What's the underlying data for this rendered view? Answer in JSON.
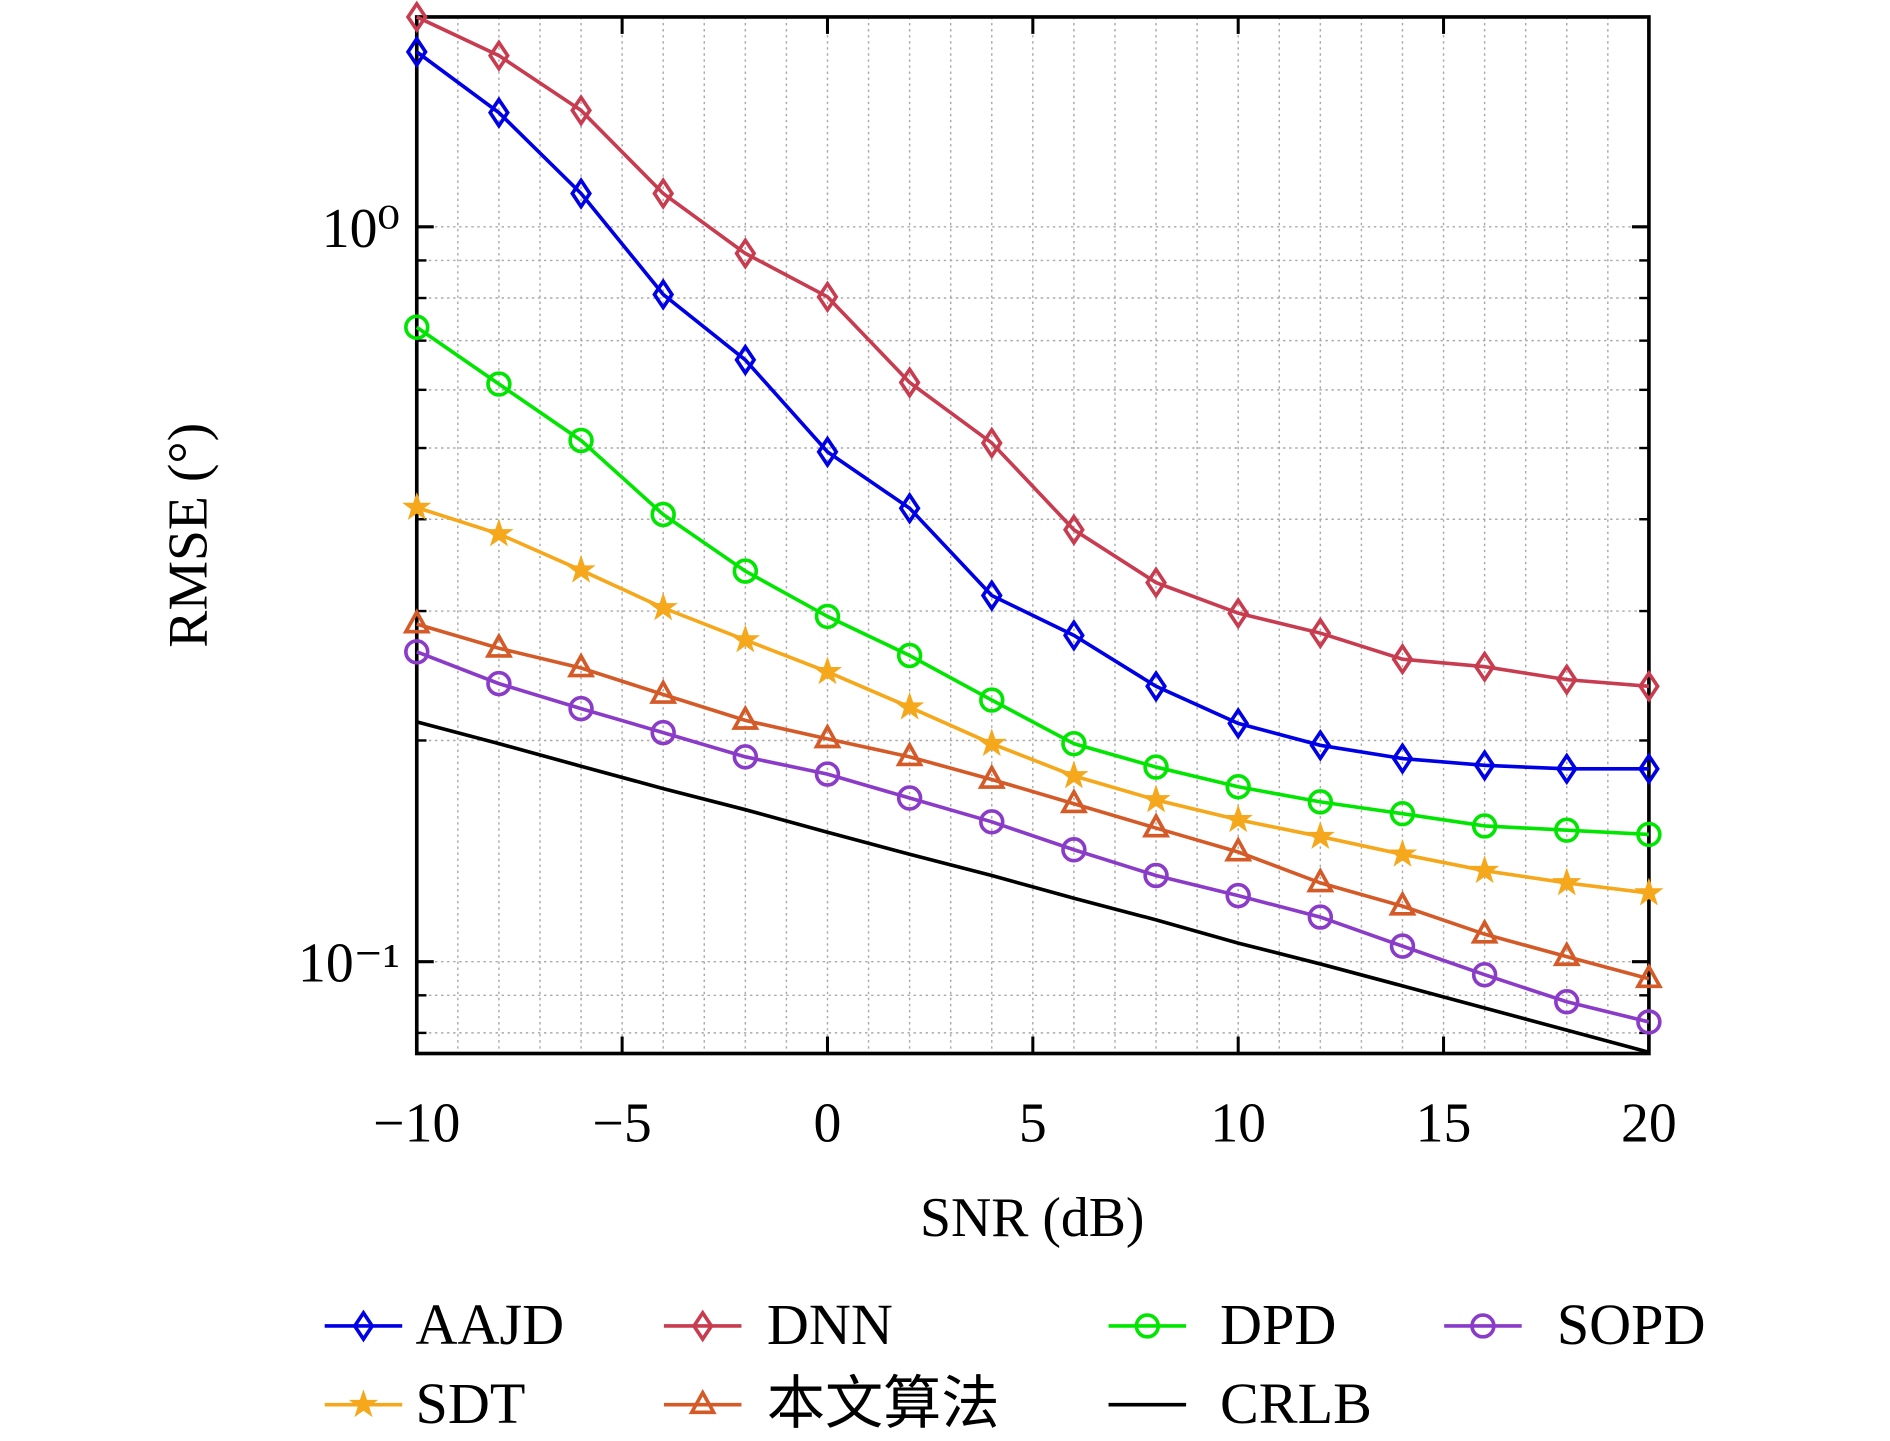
{
  "chart_data": {
    "type": "line",
    "xlabel": "SNR (dB)",
    "ylabel": "RMSE (°)",
    "x": [
      -10,
      -8,
      -6,
      -4,
      -2,
      0,
      2,
      4,
      6,
      8,
      10,
      12,
      14,
      16,
      18,
      20
    ],
    "xlim": [
      -10,
      20
    ],
    "xticks": [
      {
        "value": -10,
        "label": "−10"
      },
      {
        "value": -5,
        "label": "−5"
      },
      0,
      5,
      10,
      15,
      20
    ],
    "xminorticks": [
      -9,
      -8,
      -7,
      -6,
      -4,
      -3,
      -2,
      -1,
      1,
      2,
      3,
      4,
      6,
      7,
      8,
      9,
      11,
      12,
      13,
      14,
      16,
      17,
      18,
      19
    ],
    "ylim": [
      0.075,
      1.93
    ],
    "yscale": "log",
    "yticks": [
      {
        "value": 0.1,
        "label": "10⁻¹"
      },
      {
        "value": 1,
        "label": "10⁰"
      }
    ],
    "yminorticks": [
      0.08,
      0.09,
      0.2,
      0.3,
      0.4,
      0.5,
      0.6,
      0.7,
      0.8,
      0.9
    ],
    "grid": true,
    "legend": "bottom",
    "series": [
      {
        "name": "AAJD",
        "color": "#0000e6",
        "marker": "diamond",
        "values": [
          1.73,
          1.43,
          1.11,
          0.809,
          0.659,
          0.494,
          0.414,
          0.315,
          0.278,
          0.237,
          0.211,
          0.197,
          0.189,
          0.185,
          0.183,
          0.183
        ]
      },
      {
        "name": "DNN",
        "color": "#c83c50",
        "marker": "diamond",
        "values": [
          1.93,
          1.71,
          1.44,
          1.11,
          0.92,
          0.803,
          0.614,
          0.508,
          0.387,
          0.328,
          0.298,
          0.28,
          0.258,
          0.252,
          0.242,
          0.237
        ]
      },
      {
        "name": "DPD",
        "color": "#00e600",
        "marker": "circle",
        "values": [
          0.73,
          0.611,
          0.512,
          0.406,
          0.34,
          0.295,
          0.261,
          0.227,
          0.198,
          0.184,
          0.173,
          0.165,
          0.159,
          0.153,
          0.151,
          0.149
        ]
      },
      {
        "name": "SOPD",
        "color": "#8a3cc8",
        "marker": "circle",
        "values": [
          0.264,
          0.239,
          0.221,
          0.205,
          0.19,
          0.18,
          0.167,
          0.155,
          0.142,
          0.131,
          0.123,
          0.115,
          0.105,
          0.096,
          0.0882,
          0.0828
        ]
      },
      {
        "name": "SDT",
        "color": "#f5a81c",
        "marker": "star",
        "values": [
          0.415,
          0.382,
          0.341,
          0.303,
          0.274,
          0.248,
          0.222,
          0.198,
          0.179,
          0.166,
          0.156,
          0.148,
          0.14,
          0.133,
          0.128,
          0.124
        ]
      },
      {
        "name": "本文算法",
        "color": "#d45a28",
        "marker": "triangle",
        "values": [
          0.288,
          0.267,
          0.251,
          0.231,
          0.213,
          0.201,
          0.19,
          0.177,
          0.164,
          0.152,
          0.141,
          0.128,
          0.119,
          0.109,
          0.1016,
          0.0948
        ]
      },
      {
        "name": "CRLB",
        "color": "#000000",
        "marker": "none",
        "values": [
          0.212,
          0.198,
          0.1845,
          0.172,
          0.161,
          0.15,
          0.14,
          0.131,
          0.122,
          0.114,
          0.106,
          0.0993,
          0.0927,
          0.0865,
          0.0807,
          0.0753
        ]
      }
    ]
  }
}
